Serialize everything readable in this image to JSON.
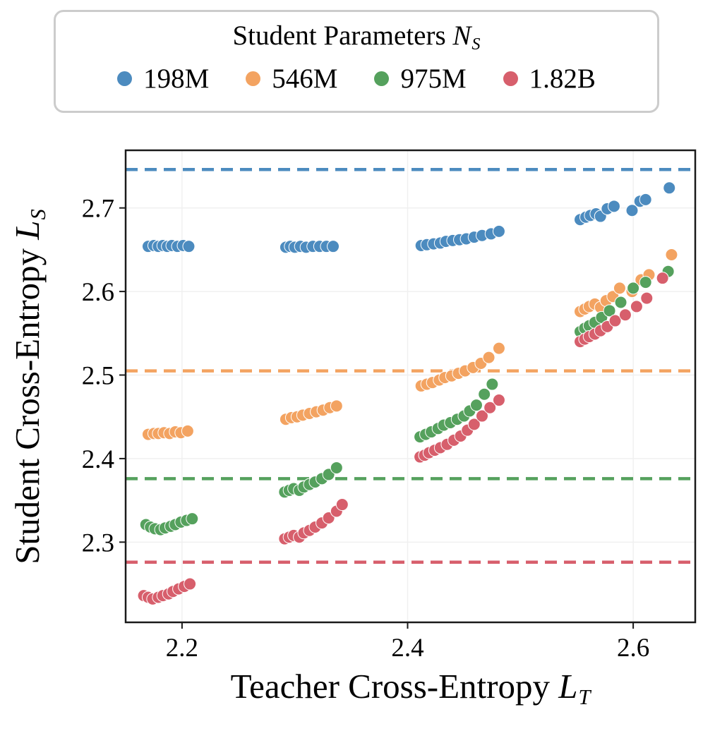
{
  "legend": {
    "title_text": "Student Parameters ",
    "title_math": "N",
    "title_sub": "S"
  },
  "axes": {
    "x_label_text": "Teacher Cross-Entropy ",
    "x_label_math": "L",
    "x_label_sub": "T",
    "y_label_text": "Student Cross-Entropy ",
    "y_label_math": "L",
    "y_label_sub": "S"
  },
  "chart_data": {
    "type": "scatter",
    "title": "",
    "xlabel": "Teacher Cross-Entropy L_T",
    "ylabel": "Student Cross-Entropy L_S",
    "legend_title": "Student Parameters N_S",
    "legend_position": "top-outside",
    "grid": "faint",
    "xlim": [
      2.15,
      2.655
    ],
    "ylim": [
      2.204,
      2.769
    ],
    "xticks": [
      2.2,
      2.4,
      2.6
    ],
    "yticks": [
      2.3,
      2.4,
      2.5,
      2.6,
      2.7
    ],
    "series": [
      {
        "name": "198M",
        "color": "#4C8BBF",
        "points": [
          [
            2.17,
            2.654
          ],
          [
            2.175,
            2.655
          ],
          [
            2.179,
            2.654
          ],
          [
            2.183,
            2.655
          ],
          [
            2.187,
            2.654
          ],
          [
            2.191,
            2.655
          ],
          [
            2.196,
            2.654
          ],
          [
            2.201,
            2.655
          ],
          [
            2.206,
            2.654
          ],
          [
            2.292,
            2.653
          ],
          [
            2.296,
            2.654
          ],
          [
            2.3,
            2.653
          ],
          [
            2.305,
            2.654
          ],
          [
            2.31,
            2.653
          ],
          [
            2.316,
            2.654
          ],
          [
            2.322,
            2.654
          ],
          [
            2.328,
            2.654
          ],
          [
            2.334,
            2.654
          ],
          [
            2.412,
            2.655
          ],
          [
            2.417,
            2.656
          ],
          [
            2.423,
            2.657
          ],
          [
            2.429,
            2.658
          ],
          [
            2.434,
            2.66
          ],
          [
            2.44,
            2.661
          ],
          [
            2.446,
            2.662
          ],
          [
            2.452,
            2.663
          ],
          [
            2.459,
            2.665
          ],
          [
            2.466,
            2.667
          ],
          [
            2.474,
            2.669
          ],
          [
            2.481,
            2.672
          ],
          [
            2.553,
            2.686
          ],
          [
            2.558,
            2.689
          ],
          [
            2.562,
            2.691
          ],
          [
            2.567,
            2.693
          ],
          [
            2.571,
            2.69
          ],
          [
            2.577,
            2.699
          ],
          [
            2.583,
            2.702
          ],
          [
            2.599,
            2.697
          ],
          [
            2.606,
            2.708
          ],
          [
            2.611,
            2.71
          ],
          [
            2.632,
            2.724
          ]
        ]
      },
      {
        "name": "546M",
        "color": "#F3A361",
        "points": [
          [
            2.17,
            2.429
          ],
          [
            2.175,
            2.43
          ],
          [
            2.179,
            2.43
          ],
          [
            2.184,
            2.431
          ],
          [
            2.189,
            2.43
          ],
          [
            2.194,
            2.432
          ],
          [
            2.199,
            2.431
          ],
          [
            2.205,
            2.433
          ],
          [
            2.292,
            2.447
          ],
          [
            2.297,
            2.449
          ],
          [
            2.302,
            2.45
          ],
          [
            2.307,
            2.452
          ],
          [
            2.313,
            2.454
          ],
          [
            2.319,
            2.456
          ],
          [
            2.325,
            2.458
          ],
          [
            2.331,
            2.461
          ],
          [
            2.337,
            2.463
          ],
          [
            2.412,
            2.487
          ],
          [
            2.417,
            2.489
          ],
          [
            2.422,
            2.491
          ],
          [
            2.428,
            2.494
          ],
          [
            2.433,
            2.497
          ],
          [
            2.439,
            2.499
          ],
          [
            2.445,
            2.502
          ],
          [
            2.451,
            2.505
          ],
          [
            2.458,
            2.509
          ],
          [
            2.465,
            2.514
          ],
          [
            2.472,
            2.521
          ],
          [
            2.481,
            2.532
          ],
          [
            2.553,
            2.576
          ],
          [
            2.557,
            2.579
          ],
          [
            2.561,
            2.582
          ],
          [
            2.566,
            2.585
          ],
          [
            2.571,
            2.581
          ],
          [
            2.576,
            2.589
          ],
          [
            2.582,
            2.594
          ],
          [
            2.588,
            2.604
          ],
          [
            2.599,
            2.6
          ],
          [
            2.607,
            2.614
          ],
          [
            2.614,
            2.62
          ],
          [
            2.634,
            2.644
          ]
        ]
      },
      {
        "name": "975M",
        "color": "#55A15D",
        "points": [
          [
            2.168,
            2.321
          ],
          [
            2.172,
            2.318
          ],
          [
            2.176,
            2.316
          ],
          [
            2.181,
            2.315
          ],
          [
            2.185,
            2.317
          ],
          [
            2.19,
            2.319
          ],
          [
            2.194,
            2.321
          ],
          [
            2.199,
            2.324
          ],
          [
            2.204,
            2.326
          ],
          [
            2.209,
            2.328
          ],
          [
            2.291,
            2.36
          ],
          [
            2.295,
            2.362
          ],
          [
            2.299,
            2.364
          ],
          [
            2.304,
            2.362
          ],
          [
            2.308,
            2.366
          ],
          [
            2.313,
            2.369
          ],
          [
            2.318,
            2.372
          ],
          [
            2.324,
            2.376
          ],
          [
            2.33,
            2.381
          ],
          [
            2.337,
            2.389
          ],
          [
            2.411,
            2.426
          ],
          [
            2.416,
            2.429
          ],
          [
            2.421,
            2.432
          ],
          [
            2.427,
            2.436
          ],
          [
            2.432,
            2.44
          ],
          [
            2.438,
            2.443
          ],
          [
            2.444,
            2.447
          ],
          [
            2.45,
            2.451
          ],
          [
            2.455,
            2.457
          ],
          [
            2.461,
            2.464
          ],
          [
            2.468,
            2.477
          ],
          [
            2.475,
            2.489
          ],
          [
            2.553,
            2.552
          ],
          [
            2.557,
            2.556
          ],
          [
            2.561,
            2.559
          ],
          [
            2.566,
            2.563
          ],
          [
            2.572,
            2.569
          ],
          [
            2.579,
            2.577
          ],
          [
            2.589,
            2.587
          ],
          [
            2.6,
            2.604
          ],
          [
            2.611,
            2.611
          ],
          [
            2.631,
            2.624
          ]
        ]
      },
      {
        "name": "1.82B",
        "color": "#D75F6C",
        "points": [
          [
            2.166,
            2.236
          ],
          [
            2.17,
            2.234
          ],
          [
            2.174,
            2.232
          ],
          [
            2.179,
            2.234
          ],
          [
            2.183,
            2.236
          ],
          [
            2.188,
            2.238
          ],
          [
            2.192,
            2.241
          ],
          [
            2.197,
            2.244
          ],
          [
            2.202,
            2.247
          ],
          [
            2.207,
            2.25
          ],
          [
            2.291,
            2.304
          ],
          [
            2.295,
            2.306
          ],
          [
            2.299,
            2.308
          ],
          [
            2.304,
            2.306
          ],
          [
            2.308,
            2.311
          ],
          [
            2.313,
            2.314
          ],
          [
            2.318,
            2.318
          ],
          [
            2.324,
            2.323
          ],
          [
            2.33,
            2.329
          ],
          [
            2.337,
            2.337
          ],
          [
            2.342,
            2.345
          ],
          [
            2.411,
            2.402
          ],
          [
            2.415,
            2.404
          ],
          [
            2.419,
            2.407
          ],
          [
            2.424,
            2.41
          ],
          [
            2.429,
            2.413
          ],
          [
            2.435,
            2.417
          ],
          [
            2.441,
            2.422
          ],
          [
            2.447,
            2.427
          ],
          [
            2.453,
            2.434
          ],
          [
            2.459,
            2.441
          ],
          [
            2.466,
            2.451
          ],
          [
            2.473,
            2.461
          ],
          [
            2.481,
            2.47
          ],
          [
            2.553,
            2.54
          ],
          [
            2.557,
            2.543
          ],
          [
            2.561,
            2.546
          ],
          [
            2.566,
            2.549
          ],
          [
            2.571,
            2.553
          ],
          [
            2.577,
            2.558
          ],
          [
            2.584,
            2.565
          ],
          [
            2.593,
            2.572
          ],
          [
            2.603,
            2.582
          ],
          [
            2.612,
            2.592
          ],
          [
            2.626,
            2.616
          ]
        ]
      }
    ],
    "baselines": [
      {
        "series": "198M",
        "y": 2.746,
        "color": "#4C8BBF",
        "style": "dashed"
      },
      {
        "series": "546M",
        "y": 2.505,
        "color": "#F3A361",
        "style": "dashed"
      },
      {
        "series": "975M",
        "y": 2.376,
        "color": "#55A15D",
        "style": "dashed"
      },
      {
        "series": "1.82B",
        "y": 2.276,
        "color": "#D75F6C",
        "style": "dashed"
      }
    ]
  }
}
